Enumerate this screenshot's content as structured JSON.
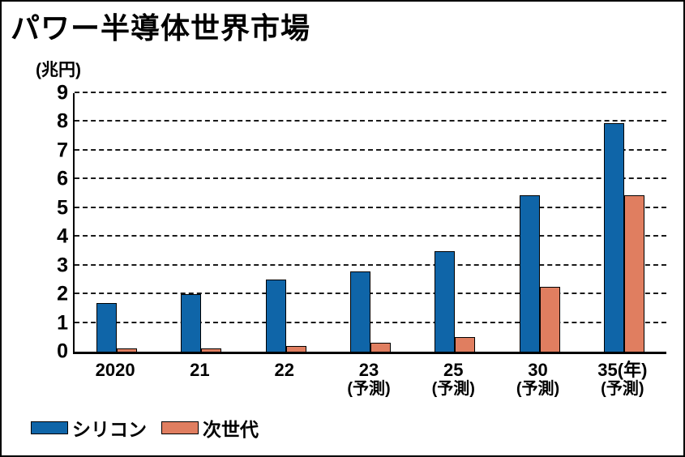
{
  "title": "パワー半導体世界市場",
  "unit_label": "(兆円)",
  "colors": {
    "silicon_blue": "#0f65a8",
    "next_gen_salmon": "#e07e60",
    "axis_black": "#000000",
    "background": "#ffffff"
  },
  "legend": {
    "items": [
      {
        "label": "シリコン",
        "color": "#0f65a8"
      },
      {
        "label": "次世代",
        "color": "#e07e60"
      }
    ],
    "position": "bottom-left"
  },
  "chart_data": {
    "type": "bar",
    "title": "パワー半導体世界市場",
    "ylabel": "(兆円)",
    "xlabel": "",
    "ylim": [
      0,
      9
    ],
    "yticks": [
      0,
      1,
      2,
      3,
      4,
      5,
      6,
      7,
      8,
      9
    ],
    "grid": "horizontal-dashed",
    "legend_position": "bottom-left",
    "categories": [
      "2020",
      "21",
      "22",
      "23",
      "25",
      "30",
      "35(年)"
    ],
    "category_sublabels": [
      "",
      "",
      "",
      "(予測)",
      "(予測)",
      "(予測)",
      "(予測)"
    ],
    "series": [
      {
        "name": "シリコン",
        "color": "#0f65a8",
        "values": [
          1.7,
          2.0,
          2.5,
          2.8,
          3.5,
          5.45,
          7.95
        ]
      },
      {
        "name": "次世代",
        "color": "#e07e60",
        "values": [
          0.1,
          0.1,
          0.2,
          0.3,
          0.5,
          2.25,
          5.45
        ]
      }
    ]
  }
}
